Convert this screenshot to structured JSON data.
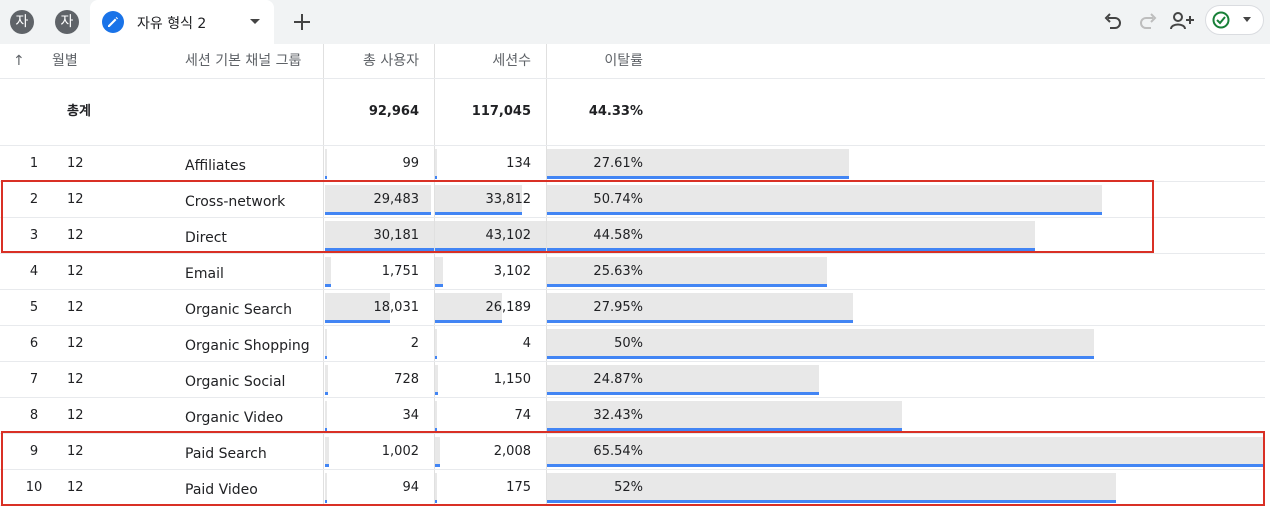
{
  "tabs": {
    "avatars": [
      "자",
      "자"
    ],
    "active_tab_label": "자유 형식 2"
  },
  "table": {
    "headers": {
      "sort_arrow": "↑",
      "month": "월별",
      "channel": "세션 기본 채널 그룹",
      "users": "총 사용자",
      "sessions": "세션수",
      "bounce": "이탈률"
    },
    "total": {
      "label": "총계",
      "users": "92,964",
      "sessions": "117,045",
      "bounce": "44.33%"
    },
    "rows": [
      {
        "idx": "1",
        "month": "12",
        "channel": "Affiliates",
        "users": "99",
        "sessions": "134",
        "bounce": "27.61%",
        "users_v": 99,
        "sessions_v": 134,
        "bounce_v": 27.61
      },
      {
        "idx": "2",
        "month": "12",
        "channel": "Cross-network",
        "users": "29,483",
        "sessions": "33,812",
        "bounce": "50.74%",
        "users_v": 29483,
        "sessions_v": 33812,
        "bounce_v": 50.74
      },
      {
        "idx": "3",
        "month": "12",
        "channel": "Direct",
        "users": "30,181",
        "sessions": "43,102",
        "bounce": "44.58%",
        "users_v": 30181,
        "sessions_v": 43102,
        "bounce_v": 44.58
      },
      {
        "idx": "4",
        "month": "12",
        "channel": "Email",
        "users": "1,751",
        "sessions": "3,102",
        "bounce": "25.63%",
        "users_v": 1751,
        "sessions_v": 3102,
        "bounce_v": 25.63
      },
      {
        "idx": "5",
        "month": "12",
        "channel": "Organic Search",
        "users": "18,031",
        "sessions": "26,189",
        "bounce": "27.95%",
        "users_v": 18031,
        "sessions_v": 26189,
        "bounce_v": 27.95
      },
      {
        "idx": "6",
        "month": "12",
        "channel": "Organic Shopping",
        "users": "2",
        "sessions": "4",
        "bounce": "50%",
        "users_v": 2,
        "sessions_v": 4,
        "bounce_v": 50
      },
      {
        "idx": "7",
        "month": "12",
        "channel": "Organic Social",
        "users": "728",
        "sessions": "1,150",
        "bounce": "24.87%",
        "users_v": 728,
        "sessions_v": 1150,
        "bounce_v": 24.87
      },
      {
        "idx": "8",
        "month": "12",
        "channel": "Organic Video",
        "users": "34",
        "sessions": "74",
        "bounce": "32.43%",
        "users_v": 34,
        "sessions_v": 74,
        "bounce_v": 32.43
      },
      {
        "idx": "9",
        "month": "12",
        "channel": "Paid Search",
        "users": "1,002",
        "sessions": "2,008",
        "bounce": "65.54%",
        "users_v": 1002,
        "sessions_v": 2008,
        "bounce_v": 65.54
      },
      {
        "idx": "10",
        "month": "12",
        "channel": "Paid Video",
        "users": "94",
        "sessions": "175",
        "bounce": "52%",
        "users_v": 94,
        "sessions_v": 175,
        "bounce_v": 52
      }
    ]
  },
  "colors": {
    "bar_fill": "#e8e8e8",
    "bar_accent": "#4285f4",
    "highlight_box": "#d93025",
    "tab_icon": "#1a73e8"
  },
  "icons": [
    "edit-icon",
    "dropdown-icon",
    "add-icon",
    "undo-icon",
    "redo-icon",
    "share-user-icon",
    "check-circle-icon",
    "caret-down-icon"
  ]
}
